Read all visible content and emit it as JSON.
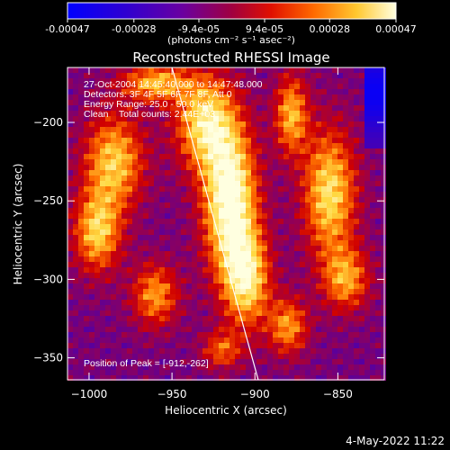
{
  "chart_data": {
    "type": "heatmap",
    "title": "Reconstructed RHESSI Image",
    "colorbar": {
      "tick_labels": [
        "-0.00047",
        "-0.00028",
        "-9.4e-05",
        "9.4e-05",
        "0.00028",
        "0.00047"
      ],
      "tick_values": [
        -0.00047,
        -0.00028,
        -9.4e-05,
        9.4e-05,
        0.00028,
        0.00047
      ],
      "range": [
        -0.00047,
        0.00047
      ],
      "unit_label": "(photons cm⁻² s⁻¹ asec⁻²)",
      "colors": [
        "#0000ff",
        "#5000a8",
        "#8a0060",
        "#d00000",
        "#ff7000",
        "#ffd840",
        "#ffffe0"
      ]
    },
    "xlabel": "Heliocentric X (arcsec)",
    "ylabel": "Heliocentric Y (arcsec)",
    "xlim": [
      -1013,
      -822
    ],
    "ylim": [
      -364,
      -165
    ],
    "x_ticks": [
      -1000,
      -950,
      -900,
      -850
    ],
    "y_ticks": [
      -200,
      -250,
      -300,
      -350
    ],
    "x_tick_labels": [
      "−1000",
      "−950",
      "−900",
      "−850"
    ],
    "y_tick_labels": [
      "−200",
      "−250",
      "−300",
      "−350"
    ],
    "annotations": [
      "27-Oct-2004 14:45:40.000 to 14:47:48.000",
      "Detectors: 3F 4F 5F 6F 7F 8F, Att 0",
      "Energy Range: 25.0 - 50.0 keV",
      "Clean    Total counts: 2.44E+03"
    ],
    "peak_label": "Position of Peak = [-912,-262]",
    "peak": [
      -912,
      -262
    ],
    "limb_line": [
      [
        -950,
        -165
      ],
      [
        -898,
        -364
      ]
    ],
    "grid": false
  },
  "footer": {
    "timestamp": "4-May-2022 11:22"
  },
  "colors": {
    "background": "#000000",
    "axis": "#ffffff",
    "limb": "#ffffff"
  }
}
